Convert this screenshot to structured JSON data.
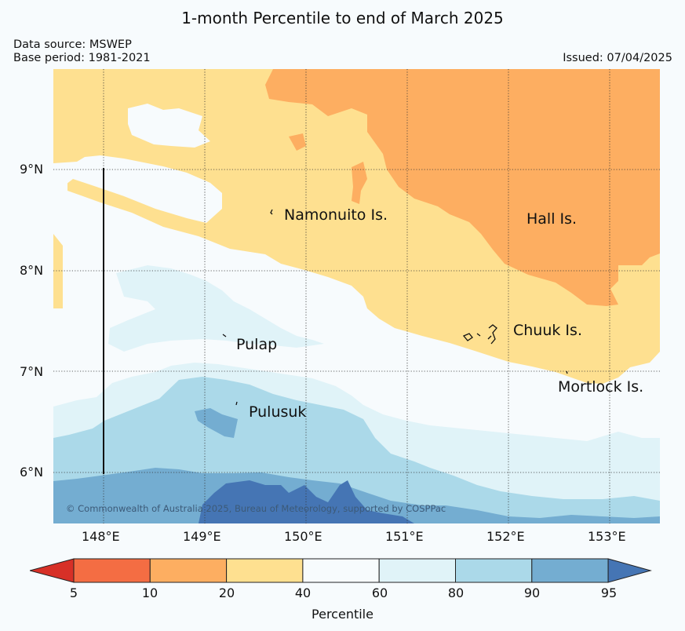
{
  "title": "1-month Percentile to end of March 2025",
  "data_source": "Data source: MSWEP",
  "base_period": "Base period: 1981-2021",
  "issued": "Issued: 07/04/2025",
  "copyright": "© Commonwealth of Australia 2025, Bureau of Meteorology, supported by COSPPac",
  "lon_ticks": [
    "148°E",
    "149°E",
    "150°E",
    "151°E",
    "152°E",
    "153°E"
  ],
  "lat_ticks": [
    "9°N",
    "8°N",
    "7°N",
    "6°N"
  ],
  "places": [
    {
      "name": "Namonuito Is."
    },
    {
      "name": "Hall Is."
    },
    {
      "name": "Chuuk Is."
    },
    {
      "name": "Mortlock Is."
    },
    {
      "name": "Pulap"
    },
    {
      "name": "Pulusuk"
    }
  ],
  "colorbar": {
    "label": "Percentile",
    "ticks": [
      "5",
      "10",
      "20",
      "40",
      "60",
      "80",
      "90",
      "95"
    ],
    "colors": [
      "#d73027",
      "#f46d43",
      "#fdae61",
      "#fee090",
      "#f7fbfd",
      "#e0f3f8",
      "#abd9e9",
      "#74add1",
      "#4575b4"
    ]
  }
}
